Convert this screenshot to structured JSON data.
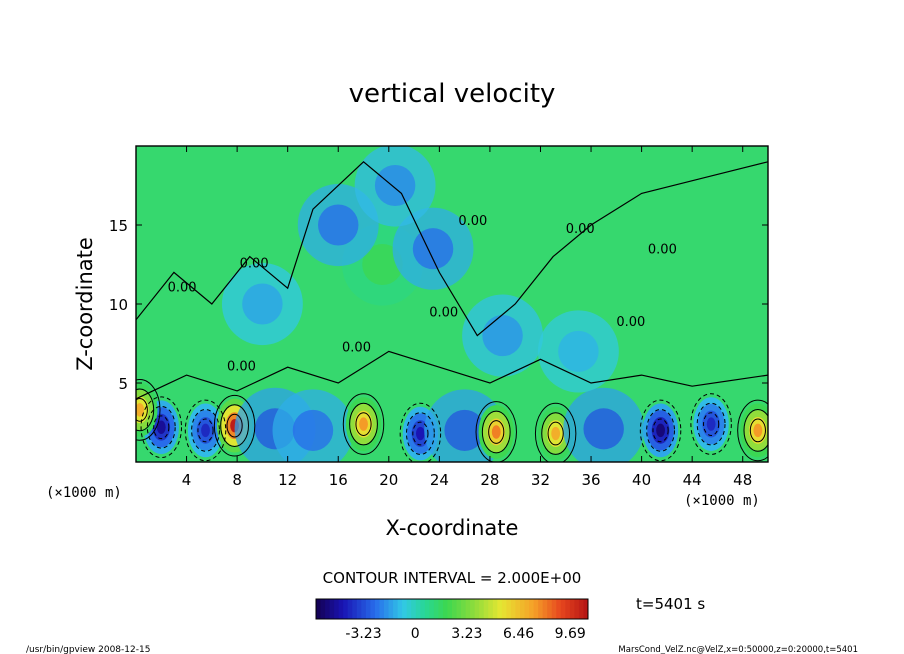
{
  "chart_data": {
    "type": "heatmap",
    "title": "vertical velocity",
    "xlabel": "X-coordinate",
    "ylabel": "Z-coordinate",
    "x_unit_left": "(×1000 m)",
    "x_unit_right": "(×1000 m)",
    "xlim": [
      0,
      50
    ],
    "ylim": [
      0,
      20
    ],
    "x_ticks": [
      4,
      8,
      12,
      16,
      20,
      24,
      28,
      32,
      36,
      40,
      44,
      48
    ],
    "y_ticks": [
      5,
      10,
      15
    ],
    "contour_interval_text": "CONTOUR INTERVAL = 2.000E+00",
    "time_text": "t=5401 s",
    "colorbar": {
      "tick_labels": [
        "-3.23",
        "0",
        "3.23",
        "6.46",
        "9.69"
      ],
      "tick_values": [
        -3.23,
        0,
        3.23,
        6.46,
        9.69
      ],
      "range": [
        -6.2,
        10.8
      ]
    },
    "contour_labels": [
      "0.00",
      "0.00",
      "0.00",
      "0.00",
      "0.00",
      "0.00",
      "0.00",
      "0.00",
      "0.00"
    ],
    "features": [
      {
        "x": 2.0,
        "z": 2.2,
        "value": -5.0
      },
      {
        "x": 5.5,
        "z": 2.0,
        "value": -4.0
      },
      {
        "x": 7.8,
        "z": 2.3,
        "value": 10.5
      },
      {
        "x": 11.0,
        "z": 2.1,
        "value": -3.0
      },
      {
        "x": 14.0,
        "z": 2.0,
        "value": -2.5
      },
      {
        "x": 18.0,
        "z": 2.4,
        "value": 7.5
      },
      {
        "x": 22.5,
        "z": 1.8,
        "value": -4.5
      },
      {
        "x": 26.0,
        "z": 2.0,
        "value": -3.0
      },
      {
        "x": 28.5,
        "z": 1.9,
        "value": 8.0
      },
      {
        "x": 33.2,
        "z": 1.8,
        "value": 7.0
      },
      {
        "x": 37.0,
        "z": 2.1,
        "value": -3.0
      },
      {
        "x": 41.5,
        "z": 2.0,
        "value": -5.5
      },
      {
        "x": 45.5,
        "z": 2.4,
        "value": -4.0
      },
      {
        "x": 49.2,
        "z": 2.0,
        "value": 7.5
      },
      {
        "x": 0.3,
        "z": 3.3,
        "value": 7.0
      },
      {
        "x": 19.5,
        "z": 12.5,
        "value": 2.0
      },
      {
        "x": 16.0,
        "z": 15.0,
        "value": -2.5
      },
      {
        "x": 23.5,
        "z": 13.5,
        "value": -2.5
      },
      {
        "x": 20.5,
        "z": 17.5,
        "value": -2.0
      },
      {
        "x": 10.0,
        "z": 10.0,
        "value": -1.5
      },
      {
        "x": 29.0,
        "z": 8.0,
        "value": -1.8
      },
      {
        "x": 35.0,
        "z": 7.0,
        "value": -1.2
      }
    ]
  },
  "footer": {
    "left": "/usr/bin/gpview   2008-12-15",
    "right": "MarsCond_VelZ.nc@VelZ,x=0:50000,z=0:20000,t=5401"
  }
}
